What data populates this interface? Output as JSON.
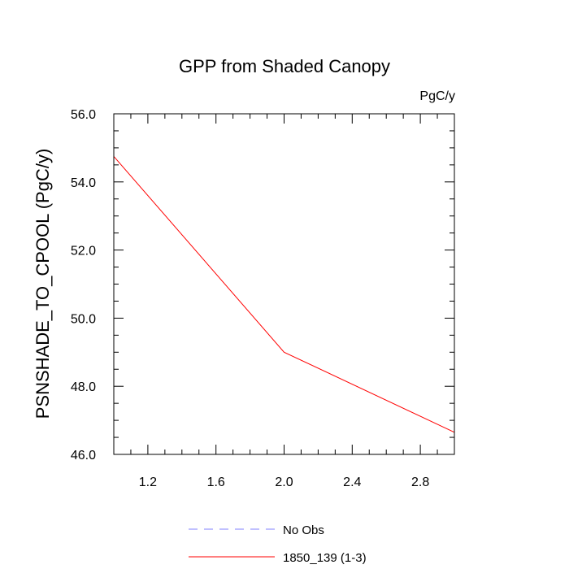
{
  "chart_data": {
    "type": "line",
    "title": "GPP from Shaded Canopy",
    "units": "PgC/y",
    "ylabel": "PSNSHADE_TO_CPOOL  (PgC/y)",
    "xlabel": "",
    "xlim": [
      1.0,
      3.0
    ],
    "ylim": [
      46.0,
      56.0
    ],
    "x_ticks": [
      1.2,
      1.6,
      2.0,
      2.4,
      2.8
    ],
    "x_tick_labels": [
      "1.2",
      "1.6",
      "2.0",
      "2.4",
      "2.8"
    ],
    "y_ticks": [
      46.0,
      48.0,
      50.0,
      52.0,
      54.0,
      56.0
    ],
    "y_tick_labels": [
      "46.0",
      "48.0",
      "50.0",
      "52.0",
      "54.0",
      "56.0"
    ],
    "series": [
      {
        "name": "1850_139 (1-3)",
        "x": [
          1.0,
          2.0,
          3.0
        ],
        "values": [
          54.75,
          49.0,
          46.65
        ],
        "color": "#ff0000",
        "dash": "solid"
      }
    ],
    "legend": [
      {
        "label": "No Obs",
        "color": "#8080ff",
        "dash": "dashed"
      },
      {
        "label": "1850_139 (1-3)",
        "color": "#ff0000",
        "dash": "solid"
      }
    ],
    "legend_position": "bottom-center",
    "grid": false
  }
}
